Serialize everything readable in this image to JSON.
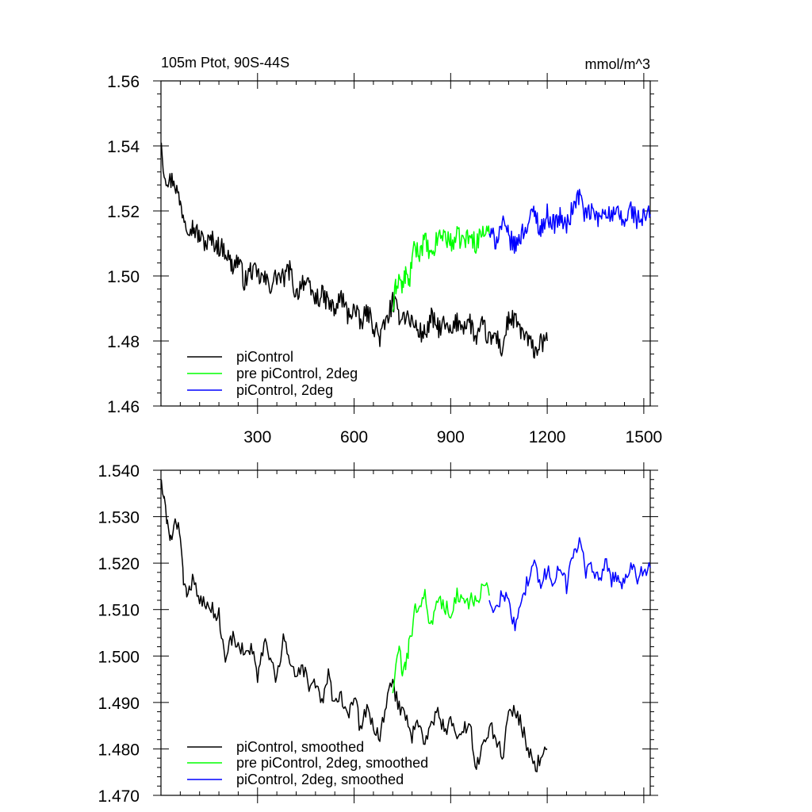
{
  "chart_data": [
    {
      "type": "line",
      "title": "105m Ptot, 90S-44S",
      "units": "mmol/m^3",
      "xlim": [
        0,
        1520
      ],
      "ylim": [
        1.46,
        1.56
      ],
      "xticks": [
        300,
        600,
        900,
        1200,
        1500
      ],
      "xtick_labels": [
        "300",
        "600",
        "900",
        "1200",
        "1500"
      ],
      "yticks": [
        1.46,
        1.48,
        1.5,
        1.52,
        1.54,
        1.56
      ],
      "ytick_labels": [
        "1.46",
        "1.48",
        "1.50",
        "1.52",
        "1.54",
        "1.56"
      ],
      "grid": false,
      "legend": "bottom-left",
      "series": [
        {
          "name": "piControl",
          "color": "#000000",
          "x": [
            1,
            10,
            25,
            40,
            60,
            80,
            100,
            120,
            140,
            160,
            180,
            200,
            220,
            240,
            260,
            280,
            300,
            320,
            340,
            360,
            380,
            400,
            420,
            440,
            460,
            480,
            500,
            520,
            540,
            560,
            580,
            600,
            620,
            640,
            660,
            680,
            700,
            720,
            740,
            760,
            780,
            800,
            820,
            840,
            860,
            880,
            900,
            920,
            940,
            960,
            980,
            1000,
            1020,
            1040,
            1060,
            1080,
            1100,
            1120,
            1140,
            1160,
            1180,
            1200
          ],
          "y": [
            1.541,
            1.532,
            1.529,
            1.53,
            1.522,
            1.516,
            1.515,
            1.512,
            1.51,
            1.511,
            1.509,
            1.508,
            1.503,
            1.505,
            1.498,
            1.502,
            1.5,
            1.499,
            1.497,
            1.5,
            1.499,
            1.502,
            1.494,
            1.499,
            1.496,
            1.493,
            1.494,
            1.492,
            1.489,
            1.494,
            1.488,
            1.49,
            1.485,
            1.489,
            1.485,
            1.481,
            1.486,
            1.492,
            1.488,
            1.488,
            1.486,
            1.483,
            1.482,
            1.487,
            1.484,
            1.485,
            1.482,
            1.486,
            1.485,
            1.486,
            1.48,
            1.485,
            1.48,
            1.482,
            1.477,
            1.487,
            1.486,
            1.483,
            1.48,
            1.477,
            1.479,
            1.48
          ]
        },
        {
          "name": "pre piControl, 2deg",
          "color": "#00ff00",
          "x": [
            720,
            730,
            740,
            750,
            760,
            770,
            780,
            790,
            800,
            820,
            840,
            860,
            880,
            900,
            920,
            940,
            960,
            980,
            1000,
            1020
          ],
          "y": [
            1.489,
            1.497,
            1.5,
            1.496,
            1.501,
            1.497,
            1.505,
            1.509,
            1.507,
            1.511,
            1.505,
            1.512,
            1.513,
            1.51,
            1.512,
            1.511,
            1.512,
            1.51,
            1.514,
            1.513
          ]
        },
        {
          "name": "piControl, 2deg",
          "color": "#0000ff",
          "x": [
            1020,
            1040,
            1060,
            1080,
            1100,
            1120,
            1140,
            1160,
            1180,
            1200,
            1220,
            1240,
            1260,
            1280,
            1300,
            1320,
            1340,
            1360,
            1380,
            1400,
            1420,
            1440,
            1460,
            1480,
            1500,
            1520
          ],
          "y": [
            1.513,
            1.511,
            1.516,
            1.512,
            1.509,
            1.513,
            1.516,
            1.52,
            1.514,
            1.519,
            1.516,
            1.518,
            1.515,
            1.521,
            1.525,
            1.518,
            1.52,
            1.517,
            1.521,
            1.518,
            1.519,
            1.516,
            1.521,
            1.517,
            1.518,
            1.519
          ]
        }
      ]
    },
    {
      "type": "line",
      "xlim": [
        0,
        1520
      ],
      "ylim": [
        1.47,
        1.54
      ],
      "xticks": [
        300,
        600,
        900,
        1200,
        1500
      ],
      "yticks": [
        1.47,
        1.48,
        1.49,
        1.5,
        1.51,
        1.52,
        1.53,
        1.54
      ],
      "ytick_labels": [
        "1.470",
        "1.480",
        "1.490",
        "1.500",
        "1.510",
        "1.520",
        "1.530",
        "1.540"
      ],
      "grid": false,
      "legend": "bottom-left",
      "series": [
        {
          "name": "piControl, smoothed",
          "color": "#000000",
          "x": [
            1,
            10,
            20,
            30,
            40,
            50,
            60,
            70,
            80,
            90,
            100,
            120,
            140,
            160,
            180,
            200,
            220,
            240,
            260,
            280,
            300,
            320,
            340,
            360,
            380,
            400,
            420,
            440,
            460,
            480,
            500,
            520,
            540,
            560,
            580,
            600,
            620,
            640,
            660,
            680,
            700,
            720,
            740,
            760,
            780,
            800,
            820,
            840,
            860,
            880,
            900,
            920,
            940,
            960,
            980,
            1000,
            1020,
            1040,
            1060,
            1080,
            1100,
            1120,
            1140,
            1160,
            1180,
            1200
          ],
          "y": [
            1.538,
            1.533,
            1.528,
            1.526,
            1.527,
            1.529,
            1.527,
            1.516,
            1.513,
            1.515,
            1.517,
            1.512,
            1.511,
            1.51,
            1.509,
            1.499,
            1.504,
            1.503,
            1.5,
            1.502,
            1.495,
            1.503,
            1.499,
            1.494,
            1.505,
            1.498,
            1.495,
            1.498,
            1.493,
            1.494,
            1.49,
            1.496,
            1.489,
            1.491,
            1.486,
            1.492,
            1.484,
            1.489,
            1.485,
            1.482,
            1.49,
            1.494,
            1.489,
            1.487,
            1.483,
            1.486,
            1.481,
            1.485,
            1.488,
            1.484,
            1.486,
            1.482,
            1.484,
            1.485,
            1.476,
            1.48,
            1.485,
            1.483,
            1.478,
            1.488,
            1.488,
            1.485,
            1.48,
            1.476,
            1.478,
            1.48
          ]
        },
        {
          "name": "pre piControl, 2deg, smoothed",
          "color": "#00ff00",
          "x": [
            720,
            730,
            740,
            750,
            760,
            770,
            780,
            790,
            800,
            820,
            840,
            860,
            880,
            900,
            920,
            940,
            960,
            980,
            1000,
            1020
          ],
          "y": [
            1.492,
            1.498,
            1.501,
            1.497,
            1.497,
            1.502,
            1.506,
            1.51,
            1.509,
            1.513,
            1.506,
            1.513,
            1.511,
            1.509,
            1.513,
            1.511,
            1.512,
            1.511,
            1.516,
            1.513
          ]
        },
        {
          "name": "piControl, 2deg, smoothed",
          "color": "#0000ff",
          "x": [
            1020,
            1040,
            1060,
            1080,
            1100,
            1120,
            1140,
            1160,
            1180,
            1200,
            1220,
            1240,
            1260,
            1280,
            1300,
            1320,
            1340,
            1360,
            1380,
            1400,
            1420,
            1440,
            1460,
            1480,
            1500,
            1520
          ],
          "y": [
            1.512,
            1.509,
            1.514,
            1.511,
            1.507,
            1.513,
            1.516,
            1.521,
            1.514,
            1.519,
            1.515,
            1.52,
            1.515,
            1.521,
            1.526,
            1.518,
            1.519,
            1.516,
            1.52,
            1.516,
            1.518,
            1.515,
            1.521,
            1.517,
            1.518,
            1.519
          ]
        }
      ]
    }
  ]
}
